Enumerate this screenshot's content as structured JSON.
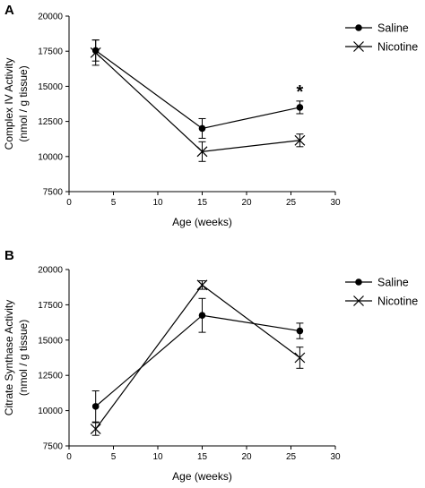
{
  "chart_data": [
    {
      "panel": "A",
      "type": "line",
      "xlabel": "Age (weeks)",
      "ylabel_lines": [
        "Complex IV Activity",
        "(nmol / g tissue)"
      ],
      "xlim": [
        0,
        30
      ],
      "ylim": [
        7500,
        20000
      ],
      "xticks": [
        0,
        5,
        10,
        15,
        20,
        25,
        30
      ],
      "yticks": [
        7500,
        10000,
        12500,
        15000,
        17500,
        20000
      ],
      "legend_position": "top-right",
      "grid": false,
      "annotation": {
        "text": "*",
        "x": 26
      },
      "series": [
        {
          "name": "Saline",
          "marker": "circle",
          "x": [
            3,
            15,
            26
          ],
          "y": [
            17550,
            12000,
            13500
          ],
          "err": [
            750,
            700,
            450
          ]
        },
        {
          "name": "Nicotine",
          "marker": "x",
          "x": [
            3,
            15,
            26
          ],
          "y": [
            17400,
            10350,
            11150
          ],
          "err": [
            900,
            700,
            450
          ]
        }
      ]
    },
    {
      "panel": "B",
      "type": "line",
      "xlabel": "Age (weeks)",
      "ylabel_lines": [
        "Citrate Synthase Activity",
        "(nmol / g tissue)"
      ],
      "xlim": [
        0,
        30
      ],
      "ylim": [
        7500,
        20000
      ],
      "xticks": [
        0,
        5,
        10,
        15,
        20,
        25,
        30
      ],
      "yticks": [
        7500,
        10000,
        12500,
        15000,
        17500,
        20000
      ],
      "legend_position": "top-right",
      "grid": false,
      "series": [
        {
          "name": "Saline",
          "marker": "circle",
          "x": [
            3,
            15,
            26
          ],
          "y": [
            10300,
            16750,
            15650
          ],
          "err": [
            1100,
            1200,
            550
          ]
        },
        {
          "name": "Nicotine",
          "marker": "x",
          "x": [
            3,
            15,
            26
          ],
          "y": [
            8700,
            18900,
            13750
          ],
          "err": [
            450,
            300,
            750
          ]
        }
      ]
    }
  ]
}
